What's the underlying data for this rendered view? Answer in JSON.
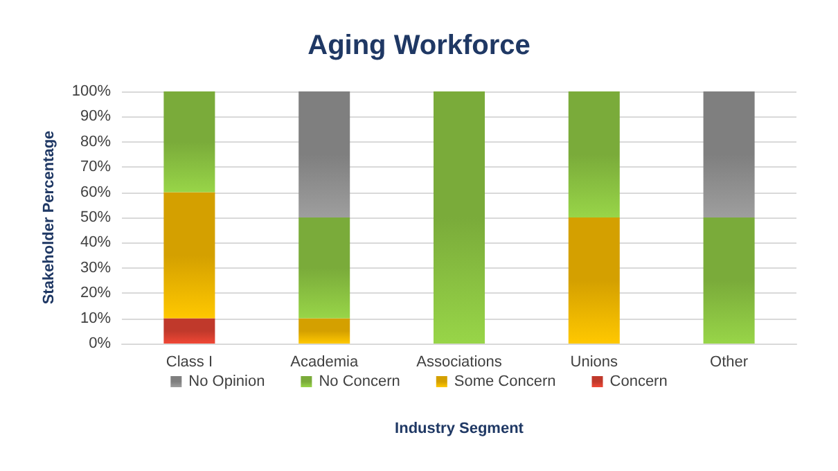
{
  "chart_data": {
    "type": "bar",
    "title": "Aging Workforce",
    "xlabel": "Industry Segment",
    "ylabel": "Stakeholder Percentage",
    "categories": [
      "Class I",
      "Academia",
      "Associations",
      "Unions",
      "Other"
    ],
    "stacked": true,
    "ylim": [
      0,
      100
    ],
    "yticks": [
      {
        "value": 0,
        "label": "0%"
      },
      {
        "value": 10,
        "label": "10%"
      },
      {
        "value": 20,
        "label": "20%"
      },
      {
        "value": 30,
        "label": "30%"
      },
      {
        "value": 40,
        "label": "40%"
      },
      {
        "value": 50,
        "label": "50%"
      },
      {
        "value": 60,
        "label": "60%"
      },
      {
        "value": 70,
        "label": "70%"
      },
      {
        "value": 80,
        "label": "80%"
      },
      {
        "value": 90,
        "label": "90%"
      },
      {
        "value": 100,
        "label": "100%"
      }
    ],
    "grid": "y",
    "legend": "bottom",
    "series": [
      {
        "name": "Concern",
        "color": "#c0392b",
        "values": [
          10,
          0,
          0,
          0,
          0
        ]
      },
      {
        "name": "Some Concern",
        "color": "#d4a000",
        "values": [
          50,
          10,
          0,
          50,
          0
        ]
      },
      {
        "name": "No Concern",
        "color": "#7aab3a",
        "values": [
          40,
          40,
          100,
          50,
          50
        ]
      },
      {
        "name": "No Opinion",
        "color": "#7f7f7f",
        "values": [
          0,
          50,
          0,
          0,
          50
        ]
      }
    ]
  }
}
